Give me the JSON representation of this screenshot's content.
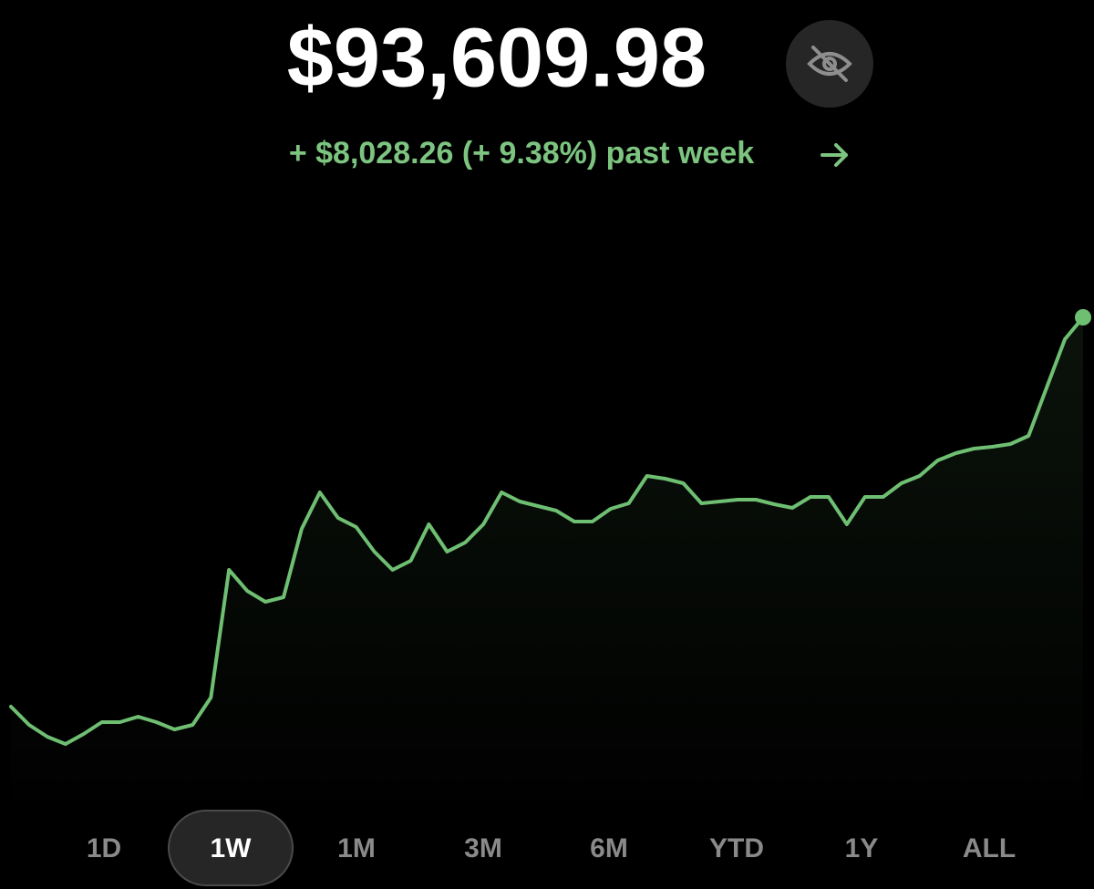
{
  "balance": "$93,609.98",
  "change": "+ $8,028.26 (+ 9.38%) past week",
  "chart_data": {
    "type": "line",
    "color": "#6fbf73",
    "values": [
      85581.72,
      85206,
      84961,
      84811,
      85018,
      85262,
      85262,
      85375,
      85262,
      85112,
      85206,
      85770,
      88402,
      87969,
      87744,
      87838,
      89248,
      90000,
      89473,
      89285,
      88778,
      88402,
      88590,
      89342,
      88778,
      88966,
      89342,
      90000,
      89812,
      89718,
      89624,
      89398,
      89398,
      89661,
      89774,
      90338,
      90282,
      90188,
      89774,
      89812,
      89849,
      89849,
      89755,
      89680,
      89906,
      89906,
      89342,
      89906,
      89906,
      90188,
      90338,
      90658,
      90808,
      90902,
      90940,
      90996,
      91165,
      92162,
      93158,
      93609.98
    ]
  },
  "ranges": [
    "1D",
    "1W",
    "1M",
    "3M",
    "6M",
    "YTD",
    "1Y",
    "ALL"
  ]
}
